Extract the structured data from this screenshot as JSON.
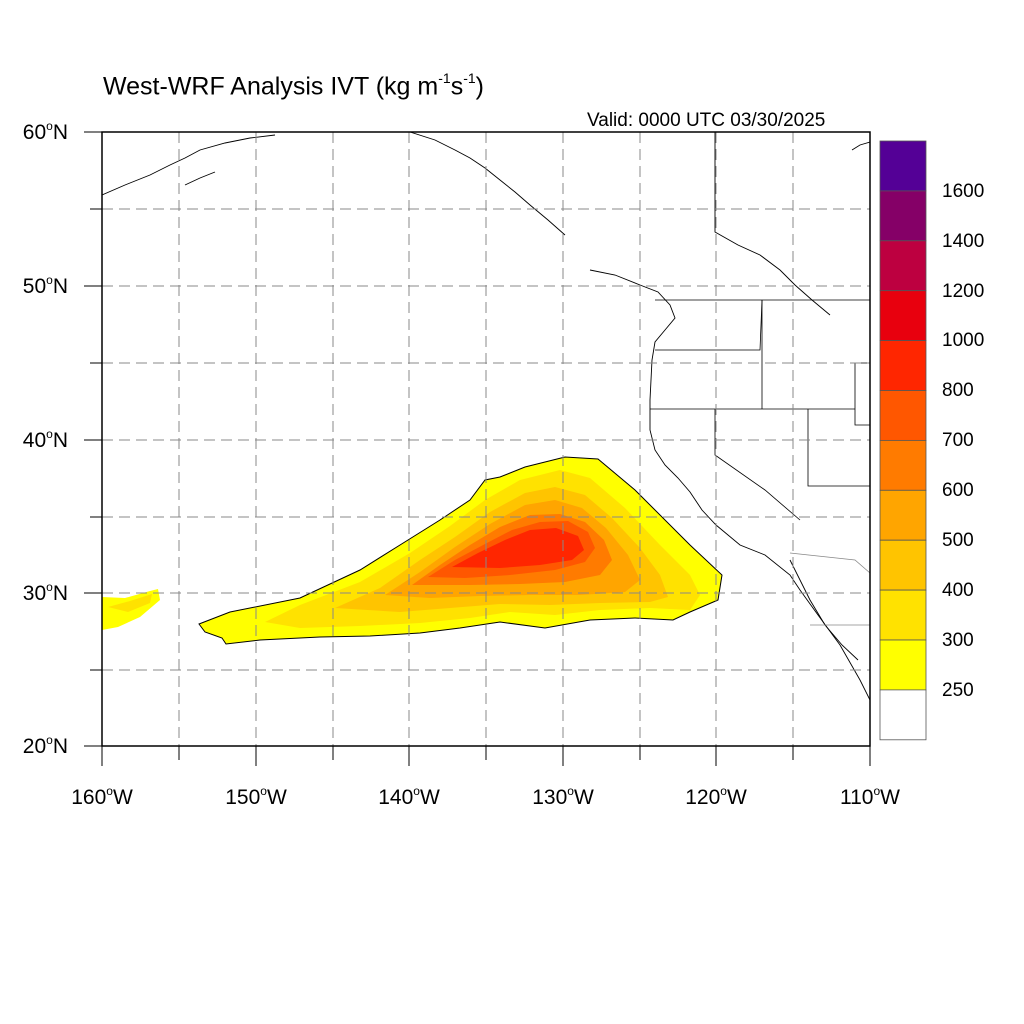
{
  "title": {
    "main": "West-WRF Analysis IVT (kg m",
    "sup1": "-1",
    "mid": "s",
    "sup2": "-1",
    "end": ")"
  },
  "valid": "Valid: 0000 UTC 03/30/2025",
  "map": {
    "lon_range": [
      -160,
      -110
    ],
    "lat_range": [
      20,
      60
    ],
    "grid_lines": "dashed, every 5 degrees",
    "projection": "cylindrical equidistant",
    "latitude_labels": [
      "60",
      "50",
      "40",
      "30",
      "20"
    ],
    "latitude_suffix": "N",
    "longitude_labels": [
      "160",
      "150",
      "140",
      "130",
      "120",
      "110"
    ],
    "longitude_suffix": "W",
    "degree_symbol": "o"
  },
  "colorbar": {
    "labels": [
      "1600",
      "1400",
      "1200",
      "1000",
      "800",
      "700",
      "600",
      "500",
      "400",
      "300",
      "250"
    ],
    "colors": [
      "#540096",
      "#850067",
      "#bd0040",
      "#e8000e",
      "#ff2600",
      "#ff5700",
      "#ff7b00",
      "#ffa500",
      "#ffc400",
      "#ffe200",
      "#ffff00",
      "#ffffff"
    ]
  },
  "chart_data": {
    "type": "heatmap",
    "title": "West-WRF Analysis IVT (kg m-1s-1)",
    "subtitle": "Valid: 0000 UTC 03/30/2025",
    "xlim": [
      -160,
      -110
    ],
    "ylim": [
      20,
      60
    ],
    "grid": true,
    "legend": "right",
    "levels": [
      250,
      300,
      400,
      500,
      600,
      700,
      800,
      1000,
      1200,
      1400,
      1600
    ],
    "features": [
      {
        "feature": "atmospheric river plume",
        "lon_range": [
          -153,
          -120
        ],
        "lat_range": [
          26.7,
          38.9
        ],
        "max_value": 800,
        "core_location": [
          -132,
          33
        ]
      },
      {
        "feature": "western edge plume",
        "lon_range": [
          -160,
          -156.3
        ],
        "lat_range": [
          27.5,
          30.3
        ],
        "max_value": 300
      }
    ]
  }
}
